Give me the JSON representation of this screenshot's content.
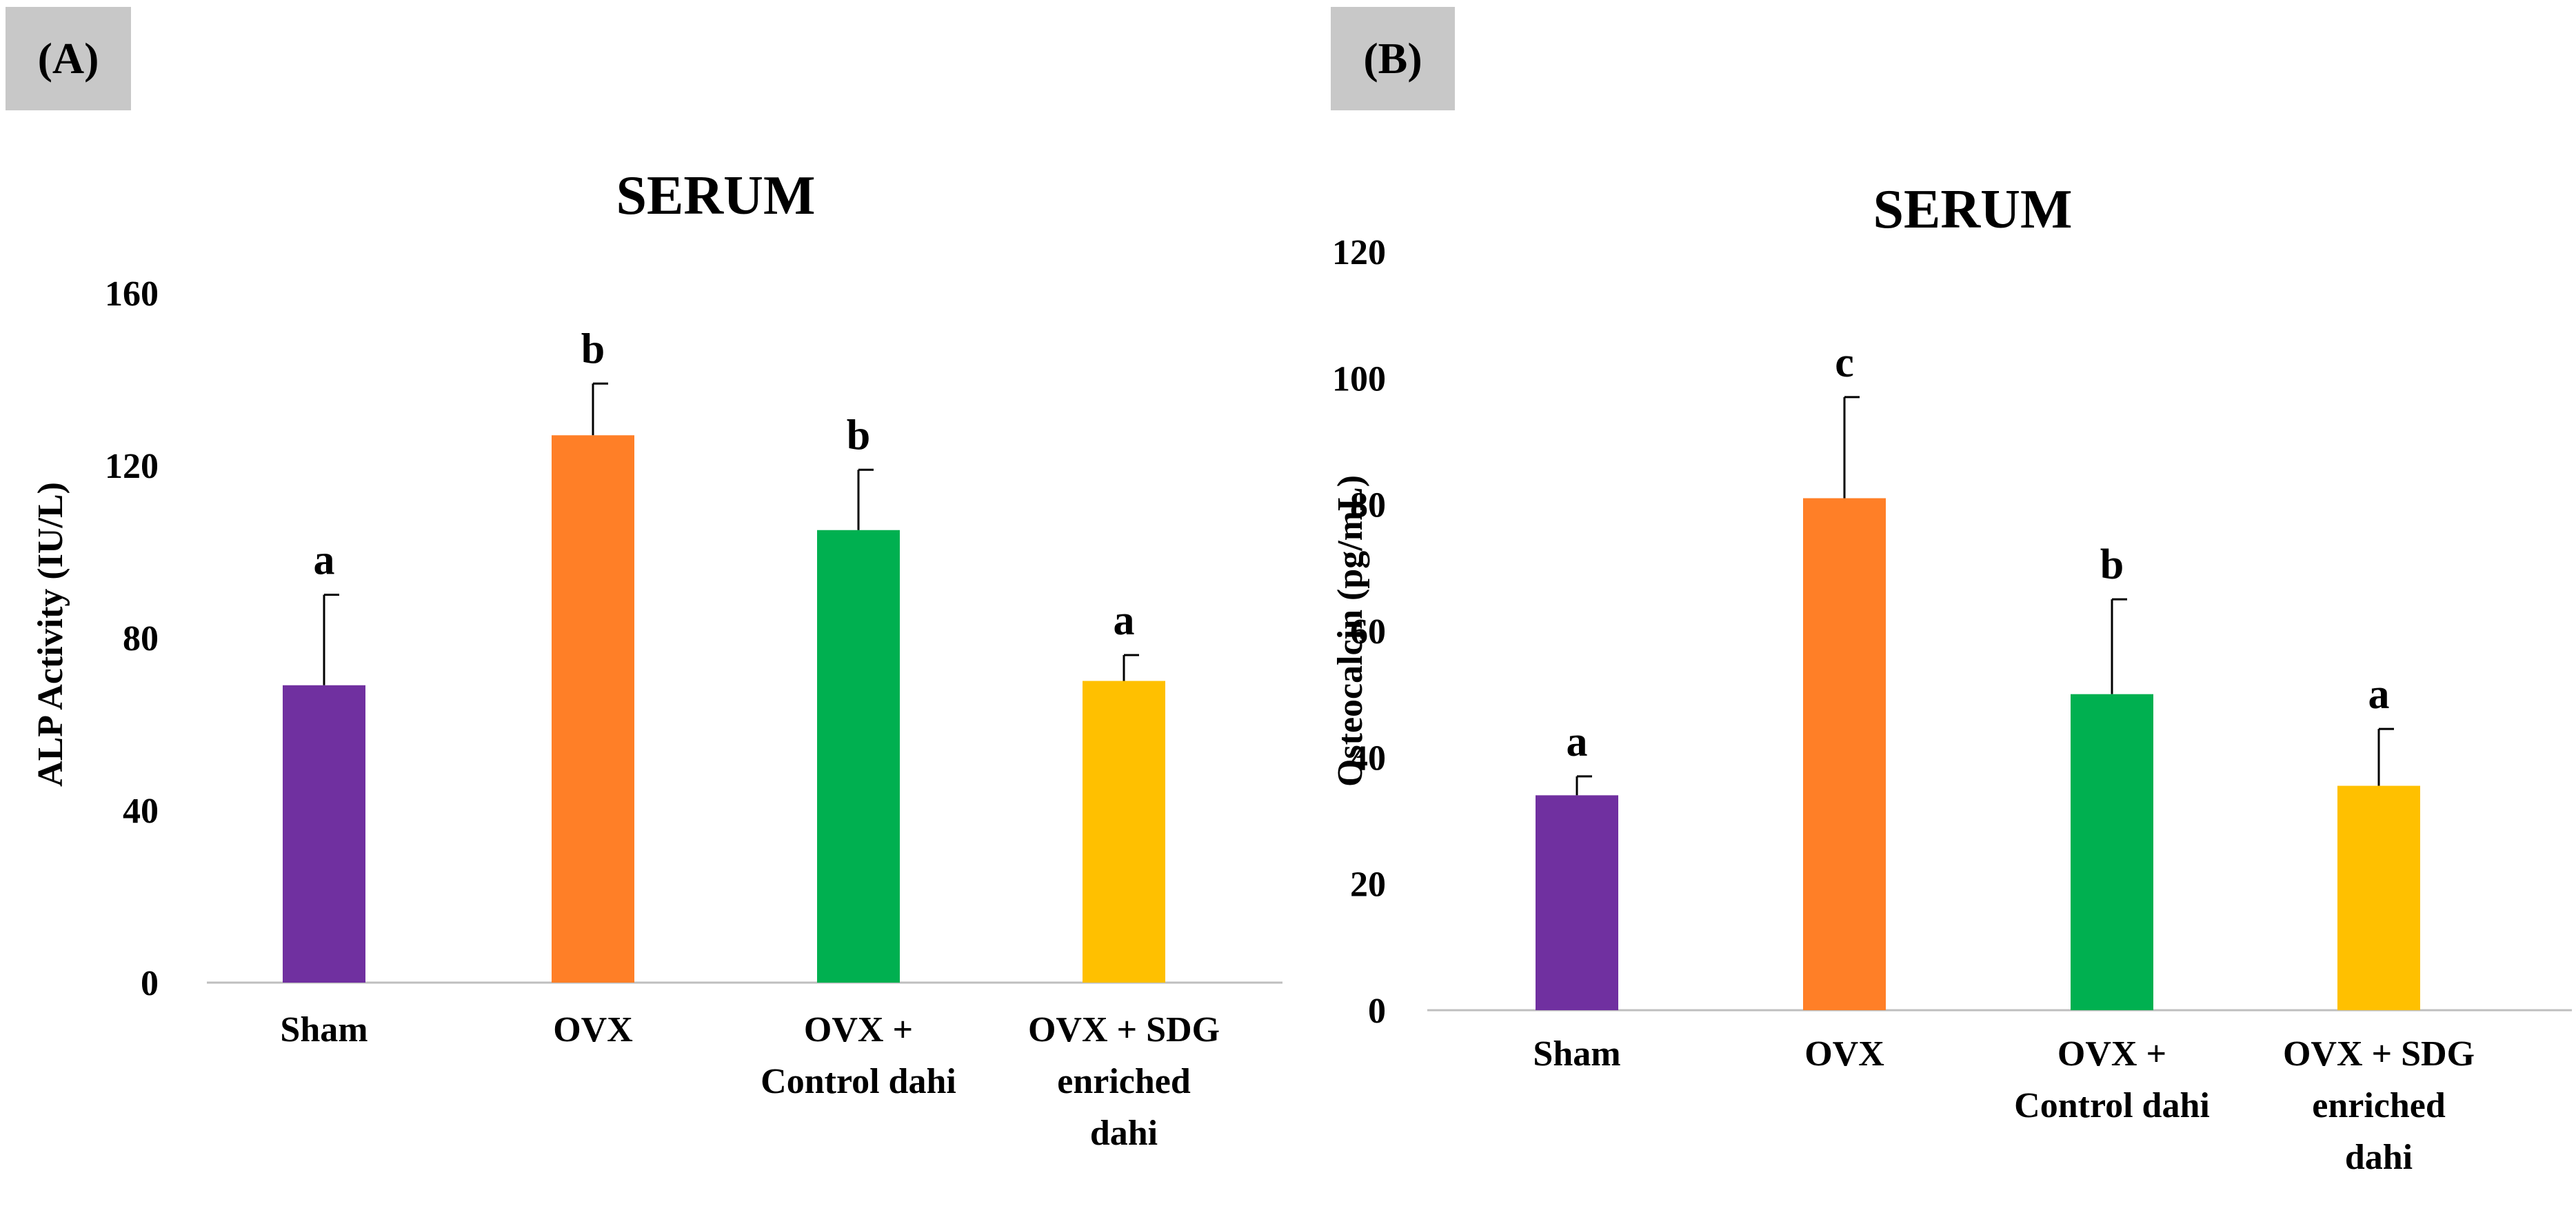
{
  "panels": [
    {
      "label": "(A)"
    },
    {
      "label": "(B)"
    }
  ],
  "chart_data": [
    {
      "type": "bar",
      "title": "SERUM",
      "xlabel": "",
      "ylabel": "ALP Activity (IU/L)",
      "ylim": [
        0,
        160
      ],
      "yticks": [
        0,
        40,
        80,
        120,
        160
      ],
      "categories": [
        "Sham",
        "OVX",
        "OVX + Control dahi",
        "OVX + SDG enriched dahi"
      ],
      "category_lines": [
        [
          "Sham"
        ],
        [
          "OVX"
        ],
        [
          "OVX +",
          "Control dahi"
        ],
        [
          "OVX + SDG",
          "enriched",
          "dahi"
        ]
      ],
      "values": [
        69,
        127,
        105,
        70
      ],
      "errors": [
        21,
        12,
        14,
        6
      ],
      "significance": [
        "a",
        "b",
        "b",
        "a"
      ],
      "colors": [
        "#7030a0",
        "#ff7f27",
        "#00b050",
        "#ffc000"
      ],
      "grid": false
    },
    {
      "type": "bar",
      "title": "SERUM",
      "xlabel": "",
      "ylabel": "Osteocalcin (pg/mL)",
      "ylim": [
        0,
        120
      ],
      "yticks": [
        0,
        20,
        40,
        60,
        80,
        100,
        120
      ],
      "categories": [
        "Sham",
        "OVX",
        "OVX + Control dahi",
        "OVX + SDG enriched dahi"
      ],
      "category_lines": [
        [
          "Sham"
        ],
        [
          "OVX"
        ],
        [
          "OVX +",
          "Control dahi"
        ],
        [
          "OVX + SDG",
          "enriched",
          "dahi"
        ]
      ],
      "values": [
        34,
        81,
        50,
        35.5
      ],
      "errors": [
        3,
        16,
        15,
        9
      ],
      "significance": [
        "a",
        "c",
        "b",
        "a"
      ],
      "colors": [
        "#7030a0",
        "#ff7f27",
        "#00b050",
        "#ffc000"
      ],
      "grid": false
    }
  ]
}
